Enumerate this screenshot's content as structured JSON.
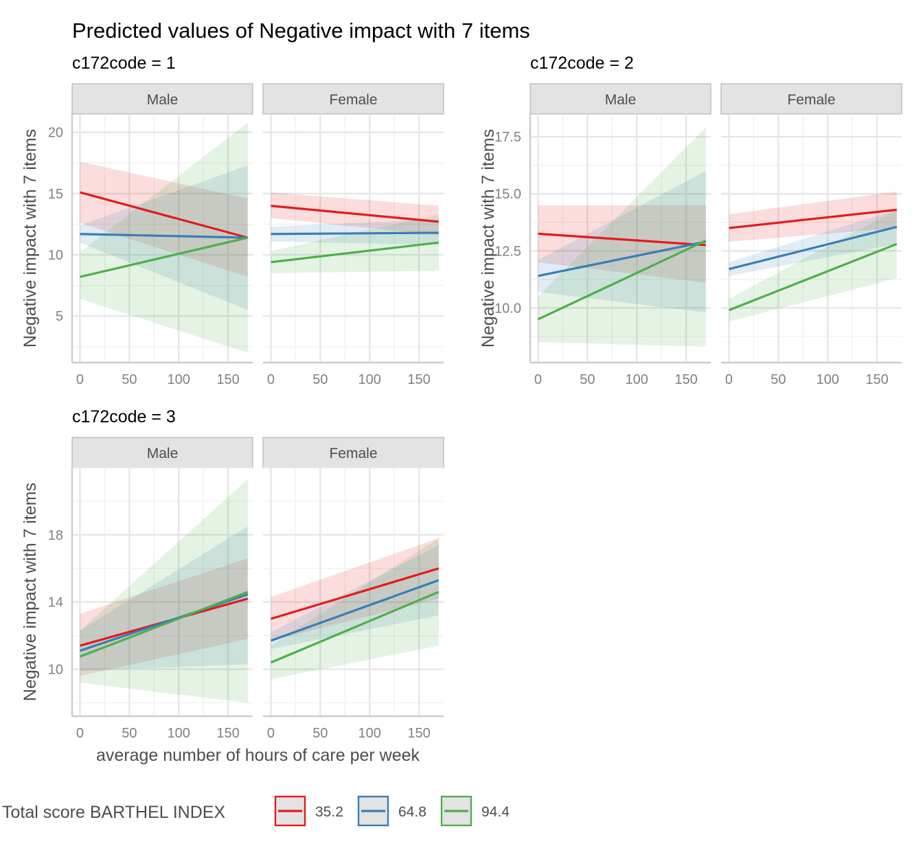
{
  "title": "Predicted values of Negative impact with 7 items",
  "xlabel": "average number of hours of care per week",
  "ylabel": "Negative impact with 7 items",
  "legend": {
    "title": "Total score BARTHEL INDEX",
    "position": "bottom",
    "items": [
      {
        "label": "35.2",
        "color": "#E41A1C"
      },
      {
        "label": "64.8",
        "color": "#377EB8"
      },
      {
        "label": "94.4",
        "color": "#4DAF4A"
      }
    ]
  },
  "chart_data": {
    "type": "line",
    "grid": true,
    "facets": [
      "Male",
      "Female"
    ],
    "xlim": [
      -8,
      175
    ],
    "xticks": [
      0,
      50,
      100,
      150
    ],
    "groups": [
      {
        "label": "c172code = 1",
        "ylim": [
          1.2,
          21.5
        ],
        "yticks": [
          5,
          10,
          15,
          20
        ],
        "ytick_labels": [
          "5",
          "10",
          "15",
          "20"
        ],
        "panels": {
          "Male": [
            {
              "name": "35.2",
              "x": [
                0,
                170
              ],
              "y": [
                15.1,
                11.4
              ],
              "lo": [
                12.6,
                8.2
              ],
              "hi": [
                17.6,
                14.6
              ]
            },
            {
              "name": "64.8",
              "x": [
                0,
                170
              ],
              "y": [
                11.7,
                11.4
              ],
              "lo": [
                11.0,
                5.5
              ],
              "hi": [
                12.4,
                17.3
              ]
            },
            {
              "name": "94.4",
              "x": [
                0,
                170
              ],
              "y": [
                8.2,
                11.4
              ],
              "lo": [
                6.4,
                2.0
              ],
              "hi": [
                10.2,
                20.8
              ]
            }
          ],
          "Female": [
            {
              "name": "35.2",
              "x": [
                0,
                170
              ],
              "y": [
                14.0,
                12.7
              ],
              "lo": [
                13.0,
                11.6
              ],
              "hi": [
                15.1,
                14.0
              ]
            },
            {
              "name": "64.8",
              "x": [
                0,
                170
              ],
              "y": [
                11.7,
                11.8
              ],
              "lo": [
                11.1,
                10.8
              ],
              "hi": [
                12.3,
                12.9
              ]
            },
            {
              "name": "94.4",
              "x": [
                0,
                170
              ],
              "y": [
                9.4,
                11.0
              ],
              "lo": [
                8.5,
                8.7
              ],
              "hi": [
                10.3,
                13.3
              ]
            }
          ]
        }
      },
      {
        "label": "c172code = 2",
        "ylim": [
          7.6,
          18.5
        ],
        "yticks": [
          10.0,
          12.5,
          15.0,
          17.5
        ],
        "ytick_labels": [
          "10.0",
          "12.5",
          "15.0",
          "17.5"
        ],
        "panels": {
          "Male": [
            {
              "name": "35.2",
              "x": [
                0,
                170
              ],
              "y": [
                13.25,
                12.75
              ],
              "lo": [
                12.0,
                11.1
              ],
              "hi": [
                14.5,
                14.5
              ]
            },
            {
              "name": "64.8",
              "x": [
                0,
                170
              ],
              "y": [
                11.4,
                12.9
              ],
              "lo": [
                10.7,
                9.8
              ],
              "hi": [
                12.1,
                16.0
              ]
            },
            {
              "name": "94.4",
              "x": [
                0,
                170
              ],
              "y": [
                9.5,
                12.95
              ],
              "lo": [
                8.5,
                8.3
              ],
              "hi": [
                10.5,
                17.9
              ]
            }
          ],
          "Female": [
            {
              "name": "35.2",
              "x": [
                0,
                170
              ],
              "y": [
                13.5,
                14.3
              ],
              "lo": [
                12.9,
                13.5
              ],
              "hi": [
                14.1,
                15.1
              ]
            },
            {
              "name": "64.8",
              "x": [
                0,
                170
              ],
              "y": [
                11.7,
                13.55
              ],
              "lo": [
                11.4,
                12.8
              ],
              "hi": [
                12.0,
                14.3
              ]
            },
            {
              "name": "94.4",
              "x": [
                0,
                170
              ],
              "y": [
                9.9,
                12.8
              ],
              "lo": [
                9.4,
                11.3
              ],
              "hi": [
                10.4,
                14.3
              ]
            }
          ]
        }
      },
      {
        "label": "c172code = 3",
        "ylim": [
          7.2,
          22.0
        ],
        "yticks": [
          10,
          14,
          18
        ],
        "ytick_labels": [
          "10",
          "14",
          "18"
        ],
        "panels": {
          "Male": [
            {
              "name": "35.2",
              "x": [
                0,
                170
              ],
              "y": [
                11.4,
                14.2
              ],
              "lo": [
                9.6,
                11.8
              ],
              "hi": [
                13.3,
                16.6
              ]
            },
            {
              "name": "64.8",
              "x": [
                0,
                170
              ],
              "y": [
                11.1,
                14.45
              ],
              "lo": [
                9.9,
                10.3
              ],
              "hi": [
                12.3,
                18.5
              ]
            },
            {
              "name": "94.4",
              "x": [
                0,
                170
              ],
              "y": [
                10.75,
                14.6
              ],
              "lo": [
                9.2,
                8.0
              ],
              "hi": [
                12.3,
                21.3
              ]
            }
          ],
          "Female": [
            {
              "name": "35.2",
              "x": [
                0,
                170
              ],
              "y": [
                13.0,
                16.0
              ],
              "lo": [
                11.7,
                14.2
              ],
              "hi": [
                14.3,
                17.8
              ]
            },
            {
              "name": "64.8",
              "x": [
                0,
                170
              ],
              "y": [
                11.7,
                15.3
              ],
              "lo": [
                11.2,
                13.2
              ],
              "hi": [
                12.2,
                17.4
              ]
            },
            {
              "name": "94.4",
              "x": [
                0,
                170
              ],
              "y": [
                10.4,
                14.6
              ],
              "lo": [
                9.4,
                11.4
              ],
              "hi": [
                11.4,
                17.8
              ]
            }
          ]
        }
      }
    ]
  }
}
